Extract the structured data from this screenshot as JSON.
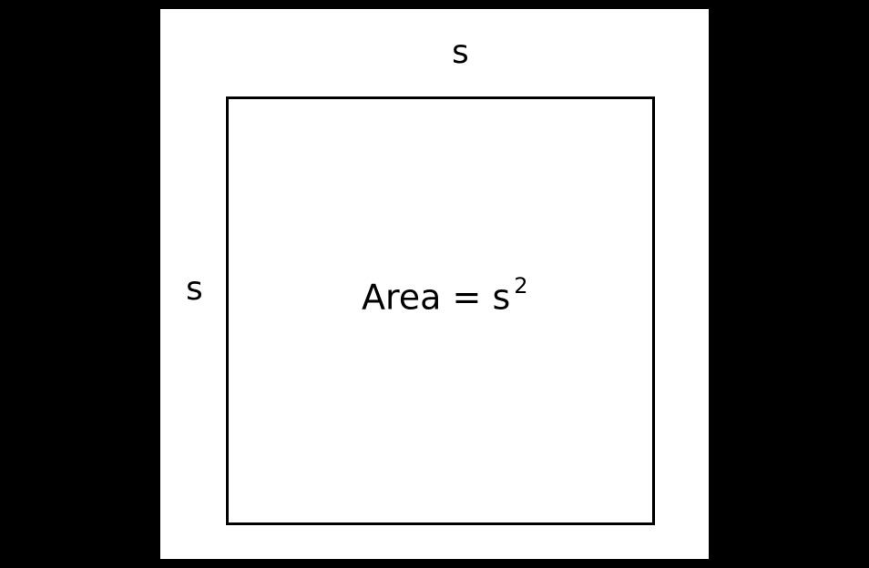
{
  "diagram": {
    "side_top_label": "s",
    "side_left_label": "s",
    "area_prefix": "Area = s",
    "area_exponent": "2",
    "colors": {
      "background": "#000000",
      "panel": "#ffffff",
      "stroke": "#000000"
    }
  }
}
